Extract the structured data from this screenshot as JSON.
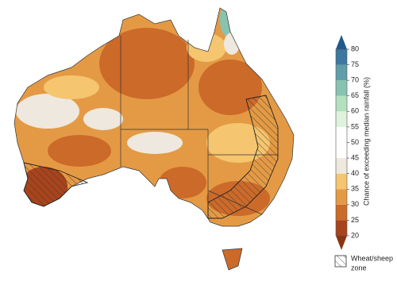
{
  "colorbar": {
    "label": "Chance of exceeding median rainfall (%)",
    "ticks": [
      20,
      25,
      30,
      35,
      40,
      45,
      50,
      55,
      60,
      65,
      70,
      75,
      80
    ],
    "colors": [
      "#a8441c",
      "#cc6a2a",
      "#e49a44",
      "#f5c56f",
      "#eee8df",
      "#ffffff",
      "#ffffff",
      "#dff2dc",
      "#b3e0bf",
      "#88c2b0",
      "#5f9ea8",
      "#3c78a0"
    ],
    "under": "#8b3412",
    "over": "#1e5a8c"
  },
  "legend": {
    "label": [
      "Wheat/sheep",
      "zone"
    ]
  }
}
